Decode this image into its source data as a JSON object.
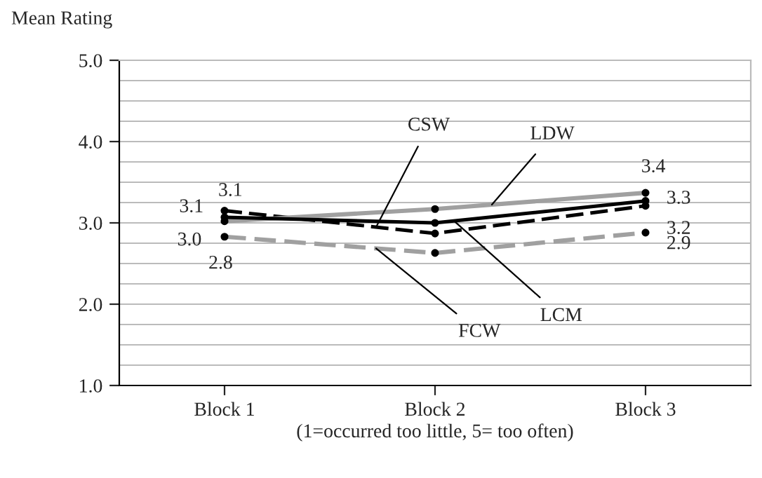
{
  "chart_data": {
    "type": "line",
    "ylabel": "Mean Rating",
    "xlabel": "(1=occurred too little, 5= too often)",
    "categories": [
      "Block 1",
      "Block 2",
      "Block 3"
    ],
    "series": [
      {
        "name": "CSW",
        "color": "#000000",
        "line_style": "dashed",
        "values": [
          3.15,
          2.87,
          3.21
        ],
        "value_labels": [
          "3.1",
          null,
          "3.2"
        ]
      },
      {
        "name": "LDW",
        "color": "#a0a0a0",
        "line_style": "solid",
        "values": [
          3.02,
          3.17,
          3.37
        ],
        "value_labels": [
          "3.0",
          null,
          "3.4"
        ]
      },
      {
        "name": "LCM",
        "color": "#000000",
        "line_style": "solid",
        "values": [
          3.07,
          3.0,
          3.27
        ],
        "value_labels": [
          "3.1",
          null,
          "3.3"
        ]
      },
      {
        "name": "FCW",
        "color": "#a0a0a0",
        "line_style": "dashed",
        "values": [
          2.83,
          2.63,
          2.88
        ],
        "value_labels": [
          "2.8",
          null,
          "2.9"
        ]
      }
    ],
    "ylim": [
      1,
      5
    ],
    "yticks": [
      {
        "value": 1,
        "label": "1.0"
      },
      {
        "value": 1.25,
        "label": null
      },
      {
        "value": 1.5,
        "label": null
      },
      {
        "value": 1.75,
        "label": null
      },
      {
        "value": 2,
        "label": "2.0"
      },
      {
        "value": 2.25,
        "label": null
      },
      {
        "value": 2.5,
        "label": null
      },
      {
        "value": 2.75,
        "label": null
      },
      {
        "value": 3,
        "label": "3.0"
      },
      {
        "value": 3.25,
        "label": null
      },
      {
        "value": 3.5,
        "label": null
      },
      {
        "value": 3.75,
        "label": null
      },
      {
        "value": 4,
        "label": "4.0"
      },
      {
        "value": 4.25,
        "label": null
      },
      {
        "value": 4.5,
        "label": null
      },
      {
        "value": 4.75,
        "label": null
      },
      {
        "value": 5,
        "label": "5.0"
      }
    ],
    "grid": "y",
    "marker": "circle"
  }
}
